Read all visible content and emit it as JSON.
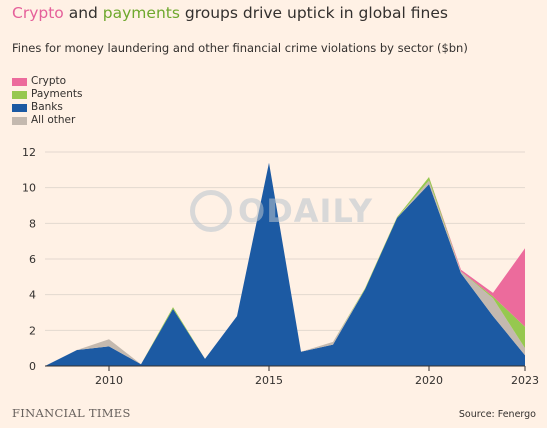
{
  "header": {
    "title_crypto": "Crypto",
    "title_and": " and ",
    "title_payments": "payments",
    "title_rest": " groups drive uptick in global fines",
    "subtitle": "Fines for money laundering and other financial crime violations by sector ($bn)"
  },
  "legend": {
    "crypto": "Crypto",
    "payments": "Payments",
    "banks": "Banks",
    "all_other": "All other"
  },
  "footer": {
    "brand": "FINANCIAL TIMES",
    "source": "Source: Fenergo"
  },
  "watermark": {
    "text": "ODAILY"
  },
  "colors": {
    "crypto": "#ec6b9c",
    "payments": "#96c84f",
    "banks": "#1c5aa3",
    "all_other": "#c4b9af",
    "grid": "#e3d8cf",
    "axis": "#33302e",
    "background": "#fff1e5"
  },
  "chart_data": {
    "type": "area",
    "stacked": true,
    "unit": "$bn",
    "x": [
      2008,
      2009,
      2010,
      2011,
      2012,
      2013,
      2014,
      2015,
      2016,
      2017,
      2018,
      2019,
      2020,
      2021,
      2022,
      2023
    ],
    "series": [
      {
        "name": "Banks",
        "values": [
          0,
          0.9,
          1.1,
          0.1,
          3.2,
          0.4,
          2.8,
          11.4,
          0.8,
          1.2,
          4.3,
          8.3,
          10.2,
          5.2,
          2.8,
          0.6
        ]
      },
      {
        "name": "All other",
        "values": [
          0,
          0,
          0.4,
          0,
          0,
          0,
          0,
          0,
          0,
          0.15,
          0,
          0,
          0.2,
          0.1,
          1.0,
          0.4
        ]
      },
      {
        "name": "Payments",
        "values": [
          0,
          0,
          0,
          0,
          0.1,
          0,
          0,
          0,
          0,
          0,
          0.05,
          0.05,
          0.2,
          0,
          0.1,
          1.2
        ]
      },
      {
        "name": "Crypto",
        "values": [
          0,
          0,
          0,
          0,
          0,
          0,
          0,
          0,
          0,
          0,
          0,
          0,
          0,
          0.1,
          0.2,
          4.4
        ]
      }
    ],
    "ylim": [
      0,
      12
    ],
    "yticks": [
      0,
      2,
      4,
      6,
      8,
      10,
      12
    ],
    "xlim": [
      2008,
      2023
    ],
    "xticks": [
      2010,
      2015,
      2020,
      2023
    ],
    "grid": true,
    "legend_position": "top-left"
  }
}
